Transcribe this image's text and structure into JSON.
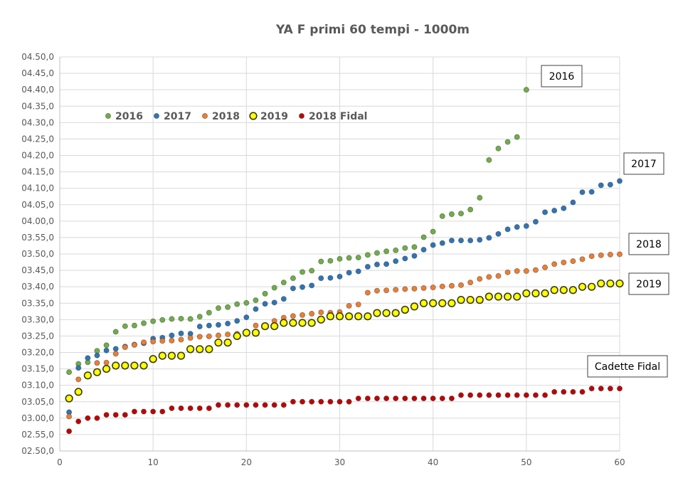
{
  "chart_data": {
    "type": "scatter",
    "title": "YA F primi 60 tempi - 1000m",
    "xlabel": "",
    "ylabel": "",
    "xlim": [
      0,
      60
    ],
    "ylim": [
      170,
      290
    ],
    "grid": true,
    "legend_position": "top-left",
    "x_ticks": [
      0,
      10,
      20,
      30,
      40,
      50,
      60
    ],
    "y_ticks": [
      {
        "seconds": 170,
        "label": "02.50,0"
      },
      {
        "seconds": 175,
        "label": "02.55,0"
      },
      {
        "seconds": 180,
        "label": "03.00,0"
      },
      {
        "seconds": 185,
        "label": "03.05,0"
      },
      {
        "seconds": 190,
        "label": "03.10,0"
      },
      {
        "seconds": 195,
        "label": "03.15,0"
      },
      {
        "seconds": 200,
        "label": "03.20,0"
      },
      {
        "seconds": 205,
        "label": "03.25,0"
      },
      {
        "seconds": 210,
        "label": "03.30,0"
      },
      {
        "seconds": 215,
        "label": "03.35,0"
      },
      {
        "seconds": 220,
        "label": "03.40,0"
      },
      {
        "seconds": 225,
        "label": "03.45,0"
      },
      {
        "seconds": 230,
        "label": "03.50,0"
      },
      {
        "seconds": 235,
        "label": "03.55,0"
      },
      {
        "seconds": 240,
        "label": "04.00,0"
      },
      {
        "seconds": 245,
        "label": "04.05,0"
      },
      {
        "seconds": 250,
        "label": "04.10,0"
      },
      {
        "seconds": 255,
        "label": "04.15,0"
      },
      {
        "seconds": 260,
        "label": "04.20,0"
      },
      {
        "seconds": 265,
        "label": "04.25,0"
      },
      {
        "seconds": 270,
        "label": "04.30,0"
      },
      {
        "seconds": 275,
        "label": "04.35,0"
      },
      {
        "seconds": 280,
        "label": "04.40,0"
      },
      {
        "seconds": 285,
        "label": "04.45,0"
      },
      {
        "seconds": 290,
        "label": "04.50,0"
      }
    ],
    "series": [
      {
        "name": "2016",
        "color": "#70ad47",
        "values": [
          194,
          196.5,
          197,
          200.5,
          202.2,
          206.3,
          208,
          208.2,
          208.9,
          209.5,
          209.9,
          210.2,
          210.3,
          210.2,
          210.9,
          212.1,
          213.5,
          213.8,
          214.7,
          215.1,
          215.9,
          217.9,
          219.7,
          221.3,
          222.6,
          224.5,
          224.9,
          227.7,
          227.9,
          228.5,
          228.8,
          228.9,
          229.7,
          230.3,
          230.8,
          231.1,
          231.8,
          232.1,
          235.1,
          236.8,
          241.5,
          242.1,
          242.3,
          243.5,
          247.1,
          258.6,
          262.1,
          264.1,
          265.6,
          280
        ]
      },
      {
        "name": "2017",
        "color": "#2e75b6",
        "values": [
          181.8,
          195.3,
          198.3,
          199.1,
          200.6,
          201.1,
          201.8,
          202.4,
          202.8,
          204.2,
          204.5,
          205.2,
          205.8,
          205.7,
          207.9,
          208.2,
          208.4,
          208.8,
          209.6,
          210.7,
          213.2,
          214.8,
          215.2,
          216.3,
          219.5,
          219.9,
          220.4,
          222.6,
          222.7,
          223.1,
          224.3,
          224.7,
          226.1,
          226.8,
          226.9,
          227.8,
          228.6,
          229.4,
          231.3,
          232.7,
          233.3,
          234.1,
          234.1,
          234.1,
          234.3,
          234.9,
          236.1,
          237.5,
          238.2,
          238.5,
          239.8,
          242.7,
          243.2,
          243.9,
          245.7,
          248.8,
          248.9,
          250.9,
          251.1,
          252.2
        ]
      },
      {
        "name": "2018",
        "color": "#ed7d31",
        "values": [
          180.5,
          191.8,
          192.7,
          196.8,
          196.9,
          199.6,
          201.6,
          202.3,
          203.1,
          203.3,
          203.5,
          203.6,
          203.9,
          204.4,
          204.8,
          204.9,
          205.2,
          205.5,
          205.7,
          206.1,
          208.2,
          208.1,
          209.6,
          210.6,
          211.1,
          211.4,
          211.8,
          212.2,
          212.1,
          212.3,
          214.2,
          214.6,
          218.2,
          218.8,
          218.9,
          219.1,
          219.3,
          219.4,
          219.6,
          219.8,
          220.1,
          220.3,
          220.5,
          221.3,
          222.4,
          223,
          223.3,
          224.4,
          224.8,
          224.8,
          225.1,
          225.9,
          226.9,
          227.4,
          227.8,
          228.4,
          229.3,
          229.6,
          229.8,
          229.9
        ]
      },
      {
        "name": "2019",
        "color": "#ffff00",
        "values": [
          186,
          188,
          193,
          194,
          195,
          196,
          196,
          196,
          196,
          198,
          199,
          199,
          199,
          201,
          201,
          201,
          203,
          203,
          205,
          206,
          206,
          208,
          208,
          209,
          209,
          209,
          209,
          210,
          211,
          211,
          211,
          211,
          211,
          212,
          212,
          212,
          213,
          214,
          215,
          215,
          215,
          215,
          216,
          216,
          216,
          217,
          217,
          217,
          217,
          218,
          218,
          218,
          219,
          219,
          219,
          220,
          220,
          221,
          221,
          221
        ]
      },
      {
        "name": "2018 Fidal",
        "color": "#c00000",
        "values": [
          176,
          179,
          180,
          180,
          181,
          181,
          181,
          182,
          182,
          182,
          182,
          183,
          183,
          183,
          183,
          183,
          184,
          184,
          184,
          184,
          184,
          184,
          184,
          184,
          185,
          185,
          185,
          185,
          185,
          185,
          185,
          186,
          186,
          186,
          186,
          186,
          186,
          186,
          186,
          186,
          186,
          186,
          187,
          187,
          187,
          187,
          187,
          187,
          187,
          187,
          187,
          187,
          188,
          188,
          188,
          188,
          189,
          189,
          189,
          189
        ]
      }
    ],
    "annotations": [
      "2016",
      "2017",
      "2018",
      "2019",
      "Cadette Fidal"
    ]
  }
}
